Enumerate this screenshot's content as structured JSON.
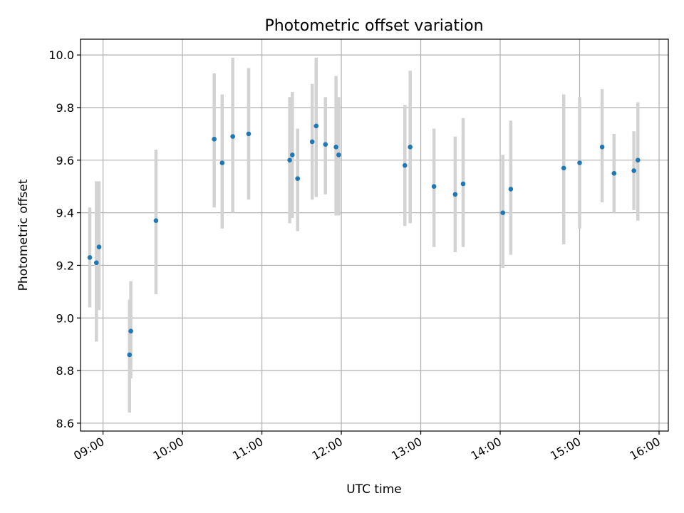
{
  "chart_data": {
    "type": "scatter",
    "title": "Photometric offset variation",
    "xlabel": "UTC time",
    "ylabel": "Photometric offset",
    "x_unit": "UTC time (HH:MM)",
    "xlim": [
      "08:43",
      "16:07"
    ],
    "ylim": [
      8.57,
      10.06
    ],
    "x_ticks": [
      "09:00",
      "10:00",
      "11:00",
      "12:00",
      "13:00",
      "14:00",
      "15:00",
      "16:00"
    ],
    "y_ticks": [
      8.6,
      8.8,
      9.0,
      9.2,
      9.4,
      9.6,
      9.8,
      10.0
    ],
    "grid": true,
    "colors": {
      "point": "#1f77b4",
      "errorbar": "#d3d3d3",
      "grid": "#b0b0b0"
    },
    "series": [
      {
        "points": [
          {
            "x": "08:50",
            "y": 9.23,
            "low": 9.04,
            "high": 9.42
          },
          {
            "x": "08:55",
            "y": 9.21,
            "low": 8.91,
            "high": 9.52
          },
          {
            "x": "08:57",
            "y": 9.27,
            "low": 9.03,
            "high": 9.52
          },
          {
            "x": "09:20",
            "y": 8.86,
            "low": 8.64,
            "high": 9.07
          },
          {
            "x": "09:21",
            "y": 8.95,
            "low": 8.77,
            "high": 9.14
          },
          {
            "x": "09:40",
            "y": 9.37,
            "low": 9.09,
            "high": 9.64
          },
          {
            "x": "10:24",
            "y": 9.68,
            "low": 9.42,
            "high": 9.93
          },
          {
            "x": "10:30",
            "y": 9.59,
            "low": 9.34,
            "high": 9.85
          },
          {
            "x": "10:38",
            "y": 9.69,
            "low": 9.4,
            "high": 9.99
          },
          {
            "x": "10:50",
            "y": 9.7,
            "low": 9.45,
            "high": 9.95
          },
          {
            "x": "11:21",
            "y": 9.6,
            "low": 9.36,
            "high": 9.84
          },
          {
            "x": "11:23",
            "y": 9.62,
            "low": 9.38,
            "high": 9.86
          },
          {
            "x": "11:27",
            "y": 9.53,
            "low": 9.33,
            "high": 9.72
          },
          {
            "x": "11:38",
            "y": 9.67,
            "low": 9.45,
            "high": 9.89
          },
          {
            "x": "11:41",
            "y": 9.73,
            "low": 9.46,
            "high": 9.99
          },
          {
            "x": "11:48",
            "y": 9.66,
            "low": 9.47,
            "high": 9.84
          },
          {
            "x": "11:56",
            "y": 9.65,
            "low": 9.39,
            "high": 9.92
          },
          {
            "x": "11:58",
            "y": 9.62,
            "low": 9.39,
            "high": 9.84
          },
          {
            "x": "12:48",
            "y": 9.58,
            "low": 9.35,
            "high": 9.81
          },
          {
            "x": "12:52",
            "y": 9.65,
            "low": 9.36,
            "high": 9.94
          },
          {
            "x": "13:10",
            "y": 9.5,
            "low": 9.27,
            "high": 9.72
          },
          {
            "x": "13:26",
            "y": 9.47,
            "low": 9.25,
            "high": 9.69
          },
          {
            "x": "13:32",
            "y": 9.51,
            "low": 9.27,
            "high": 9.76
          },
          {
            "x": "14:02",
            "y": 9.4,
            "low": 9.19,
            "high": 9.62
          },
          {
            "x": "14:08",
            "y": 9.49,
            "low": 9.24,
            "high": 9.75
          },
          {
            "x": "14:48",
            "y": 9.57,
            "low": 9.28,
            "high": 9.85
          },
          {
            "x": "15:00",
            "y": 9.59,
            "low": 9.34,
            "high": 9.84
          },
          {
            "x": "15:17",
            "y": 9.65,
            "low": 9.44,
            "high": 9.87
          },
          {
            "x": "15:26",
            "y": 9.55,
            "low": 9.4,
            "high": 9.7
          },
          {
            "x": "15:41",
            "y": 9.56,
            "low": 9.41,
            "high": 9.71
          },
          {
            "x": "15:44",
            "y": 9.6,
            "low": 9.37,
            "high": 9.82
          }
        ]
      }
    ]
  }
}
